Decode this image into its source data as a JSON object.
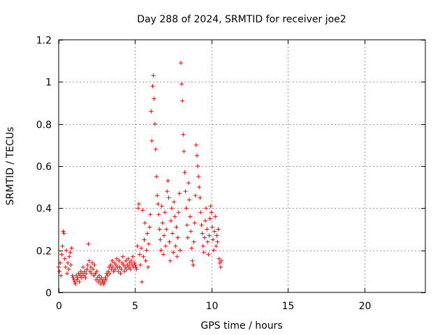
{
  "chart_data": {
    "type": "scatter",
    "title": "Day 288 of 2024, SRMTID for receiver joe2",
    "xlabel": "GPS time / hours",
    "ylabel": "SRMTID / TECUs",
    "xlim": [
      0,
      24
    ],
    "ylim": [
      0,
      1.2
    ],
    "xticks": [
      0,
      5,
      10,
      15,
      20
    ],
    "xtick_labels": [
      "0",
      "5",
      "10",
      "15",
      "20"
    ],
    "yticks": [
      0,
      0.2,
      0.4,
      0.6,
      0.8,
      1,
      1.2
    ],
    "ytick_labels": [
      "0",
      "0.2",
      "0.4",
      "0.6",
      "0.8",
      "1",
      "1.2"
    ],
    "grid": true,
    "marker": "+",
    "color": "#ff0000",
    "series": [
      {
        "name": "joe2",
        "points": [
          [
            0.0,
            0.12
          ],
          [
            0.05,
            0.1
          ],
          [
            0.1,
            0.14
          ],
          [
            0.15,
            0.08
          ],
          [
            0.2,
            0.18
          ],
          [
            0.25,
            0.22
          ],
          [
            0.3,
            0.29
          ],
          [
            0.35,
            0.28
          ],
          [
            0.4,
            0.16
          ],
          [
            0.45,
            0.12
          ],
          [
            0.5,
            0.2
          ],
          [
            0.55,
            0.09
          ],
          [
            0.6,
            0.14
          ],
          [
            0.65,
            0.11
          ],
          [
            0.7,
            0.17
          ],
          [
            0.75,
            0.19
          ],
          [
            0.8,
            0.13
          ],
          [
            0.85,
            0.21
          ],
          [
            0.9,
            0.08
          ],
          [
            0.95,
            0.07
          ],
          [
            1.0,
            0.06
          ],
          [
            1.05,
            0.05
          ],
          [
            1.1,
            0.04
          ],
          [
            1.15,
            0.08
          ],
          [
            1.2,
            0.06
          ],
          [
            1.25,
            0.07
          ],
          [
            1.3,
            0.09
          ],
          [
            1.35,
            0.05
          ],
          [
            1.4,
            0.08
          ],
          [
            1.45,
            0.1
          ],
          [
            1.5,
            0.07
          ],
          [
            1.55,
            0.09
          ],
          [
            1.6,
            0.12
          ],
          [
            1.65,
            0.08
          ],
          [
            1.7,
            0.1
          ],
          [
            1.75,
            0.07
          ],
          [
            1.8,
            0.09
          ],
          [
            1.85,
            0.11
          ],
          [
            1.9,
            0.13
          ],
          [
            1.95,
            0.23
          ],
          [
            2.0,
            0.15
          ],
          [
            2.05,
            0.1
          ],
          [
            2.1,
            0.12
          ],
          [
            2.15,
            0.09
          ],
          [
            2.2,
            0.14
          ],
          [
            2.25,
            0.11
          ],
          [
            2.3,
            0.08
          ],
          [
            2.35,
            0.13
          ],
          [
            2.4,
            0.09
          ],
          [
            2.45,
            0.06
          ],
          [
            2.5,
            0.1
          ],
          [
            2.55,
            0.07
          ],
          [
            2.6,
            0.05
          ],
          [
            2.65,
            0.08
          ],
          [
            2.7,
            0.06
          ],
          [
            2.75,
            0.04
          ],
          [
            2.8,
            0.07
          ],
          [
            2.85,
            0.05
          ],
          [
            2.9,
            0.06
          ],
          [
            2.95,
            0.04
          ],
          [
            3.0,
            0.05
          ],
          [
            3.05,
            0.07
          ],
          [
            3.1,
            0.06
          ],
          [
            3.15,
            0.09
          ],
          [
            3.2,
            0.08
          ],
          [
            3.25,
            0.1
          ],
          [
            3.3,
            0.12
          ],
          [
            3.35,
            0.09
          ],
          [
            3.4,
            0.13
          ],
          [
            3.45,
            0.11
          ],
          [
            3.5,
            0.15
          ],
          [
            3.55,
            0.12
          ],
          [
            3.6,
            0.1
          ],
          [
            3.65,
            0.14
          ],
          [
            3.7,
            0.11
          ],
          [
            3.75,
            0.13
          ],
          [
            3.8,
            0.16
          ],
          [
            3.85,
            0.12
          ],
          [
            3.9,
            0.1
          ],
          [
            3.95,
            0.15
          ],
          [
            4.0,
            0.12
          ],
          [
            4.05,
            0.09
          ],
          [
            4.1,
            0.11
          ],
          [
            4.15,
            0.14
          ],
          [
            4.2,
            0.17
          ],
          [
            4.25,
            0.13
          ],
          [
            4.3,
            0.1
          ],
          [
            4.35,
            0.12
          ],
          [
            4.4,
            0.15
          ],
          [
            4.45,
            0.11
          ],
          [
            4.5,
            0.13
          ],
          [
            4.55,
            0.16
          ],
          [
            4.6,
            0.12
          ],
          [
            4.65,
            0.14
          ],
          [
            4.7,
            0.11
          ],
          [
            4.75,
            0.15
          ],
          [
            4.8,
            0.13
          ],
          [
            4.85,
            0.17
          ],
          [
            4.9,
            0.12
          ],
          [
            4.95,
            0.14
          ],
          [
            5.0,
            0.13
          ],
          [
            5.05,
            0.12
          ],
          [
            5.1,
            0.11
          ],
          [
            5.15,
            0.22
          ],
          [
            5.2,
            0.4
          ],
          [
            5.25,
            0.42
          ],
          [
            5.3,
            0.18
          ],
          [
            5.35,
            0.13
          ],
          [
            5.4,
            0.21
          ],
          [
            5.45,
            0.05
          ],
          [
            5.5,
            0.39
          ],
          [
            5.55,
            0.17
          ],
          [
            5.6,
            0.25
          ],
          [
            5.65,
            0.33
          ],
          [
            5.7,
            0.15
          ],
          [
            5.75,
            0.2
          ],
          [
            5.8,
            0.28
          ],
          [
            5.85,
            0.12
          ],
          [
            5.9,
            0.23
          ],
          [
            5.95,
            0.31
          ],
          [
            6.0,
            0.37
          ],
          [
            6.05,
            0.86
          ],
          [
            6.1,
            0.72
          ],
          [
            6.15,
            0.98
          ],
          [
            6.2,
            1.03
          ],
          [
            6.25,
            0.92
          ],
          [
            6.3,
            0.8
          ],
          [
            6.35,
            0.68
          ],
          [
            6.4,
            0.55
          ],
          [
            6.45,
            0.46
          ],
          [
            6.5,
            0.42
          ],
          [
            6.55,
            0.37
          ],
          [
            6.6,
            0.3
          ],
          [
            6.65,
            0.25
          ],
          [
            6.7,
            0.2
          ],
          [
            6.75,
            0.41
          ],
          [
            6.8,
            0.33
          ],
          [
            6.85,
            0.18
          ],
          [
            6.9,
            0.27
          ],
          [
            6.95,
            0.38
          ],
          [
            7.0,
            0.22
          ],
          [
            7.05,
            0.3
          ],
          [
            7.1,
            0.48
          ],
          [
            7.15,
            0.53
          ],
          [
            7.2,
            0.45
          ],
          [
            7.25,
            0.24
          ],
          [
            7.3,
            0.15
          ],
          [
            7.35,
            0.34
          ],
          [
            7.4,
            0.4
          ],
          [
            7.45,
            0.28
          ],
          [
            7.5,
            0.19
          ],
          [
            7.55,
            0.43
          ],
          [
            7.6,
            0.36
          ],
          [
            7.65,
            0.22
          ],
          [
            7.7,
            0.31
          ],
          [
            7.75,
            0.17
          ],
          [
            7.8,
            0.26
          ],
          [
            7.85,
            0.38
          ],
          [
            7.9,
            0.47
          ],
          [
            7.95,
            0.2
          ],
          [
            8.0,
            1.09
          ],
          [
            8.05,
            0.99
          ],
          [
            8.1,
            0.91
          ],
          [
            8.15,
            0.75
          ],
          [
            8.2,
            0.67
          ],
          [
            8.25,
            0.57
          ],
          [
            8.3,
            0.48
          ],
          [
            8.35,
            0.4
          ],
          [
            8.4,
            0.32
          ],
          [
            8.45,
            0.26
          ],
          [
            8.5,
            0.52
          ],
          [
            8.55,
            0.44
          ],
          [
            8.6,
            0.36
          ],
          [
            8.65,
            0.29
          ],
          [
            8.7,
            0.21
          ],
          [
            8.75,
            0.15
          ],
          [
            8.8,
            0.13
          ],
          [
            8.85,
            0.24
          ],
          [
            8.9,
            0.33
          ],
          [
            8.95,
            0.46
          ],
          [
            9.0,
            0.7
          ],
          [
            9.05,
            0.65
          ],
          [
            9.1,
            0.6
          ],
          [
            9.15,
            0.55
          ],
          [
            9.2,
            0.5
          ],
          [
            9.25,
            0.45
          ],
          [
            9.3,
            0.38
          ],
          [
            9.35,
            0.32
          ],
          [
            9.4,
            0.28
          ],
          [
            9.45,
            0.22
          ],
          [
            9.5,
            0.19
          ],
          [
            9.55,
            0.26
          ],
          [
            9.6,
            0.34
          ],
          [
            9.65,
            0.4
          ],
          [
            9.7,
            0.3
          ],
          [
            9.75,
            0.24
          ],
          [
            9.8,
            0.18
          ],
          [
            9.85,
            0.27
          ],
          [
            9.9,
            0.35
          ],
          [
            9.95,
            0.41
          ],
          [
            10.0,
            0.38
          ],
          [
            10.05,
            0.31
          ],
          [
            10.1,
            0.25
          ],
          [
            10.15,
            0.2
          ],
          [
            10.2,
            0.29
          ],
          [
            10.25,
            0.36
          ],
          [
            10.3,
            0.22
          ],
          [
            10.35,
            0.27
          ],
          [
            10.4,
            0.24
          ],
          [
            10.45,
            0.3
          ],
          [
            10.5,
            0.16
          ],
          [
            10.55,
            0.14
          ],
          [
            10.6,
            0.12
          ],
          [
            10.65,
            0.15
          ]
        ]
      }
    ]
  }
}
